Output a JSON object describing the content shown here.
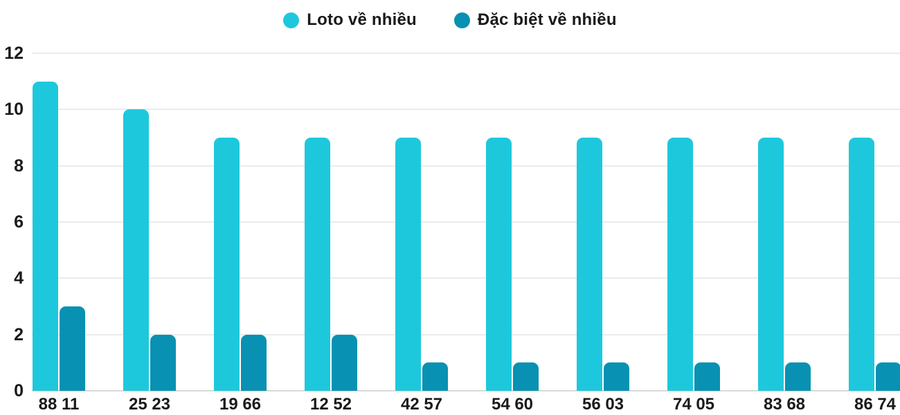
{
  "legend": {
    "items": [
      {
        "label": "Loto về nhiều",
        "color": "#1EC8DC"
      },
      {
        "label": "Đặc biệt về nhiều",
        "color": "#0891B2"
      }
    ]
  },
  "chart_data": {
    "type": "bar",
    "title": "",
    "categories": [
      "88 11",
      "25 23",
      "19 66",
      "12 52",
      "42 57",
      "54 60",
      "56 03",
      "74 05",
      "83 68",
      "86 74"
    ],
    "series": [
      {
        "name": "Loto về nhiều",
        "color": "#1EC8DC",
        "values": [
          11,
          10,
          9,
          9,
          9,
          9,
          9,
          9,
          9,
          9
        ]
      },
      {
        "name": "Đặc biệt về nhiều",
        "color": "#0891B2",
        "values": [
          3,
          2,
          2,
          2,
          1,
          1,
          1,
          1,
          1,
          1
        ]
      }
    ],
    "xlabel": "",
    "ylabel": "",
    "ylim": [
      0,
      12
    ],
    "yticks": [
      0,
      2,
      4,
      6,
      8,
      10,
      12
    ],
    "grid": true,
    "legend_position": "top",
    "colors": {
      "gridline": "#ebebeb",
      "baseline": "#d9d9d9",
      "text": "#1a1a1a",
      "background": "#ffffff"
    }
  }
}
